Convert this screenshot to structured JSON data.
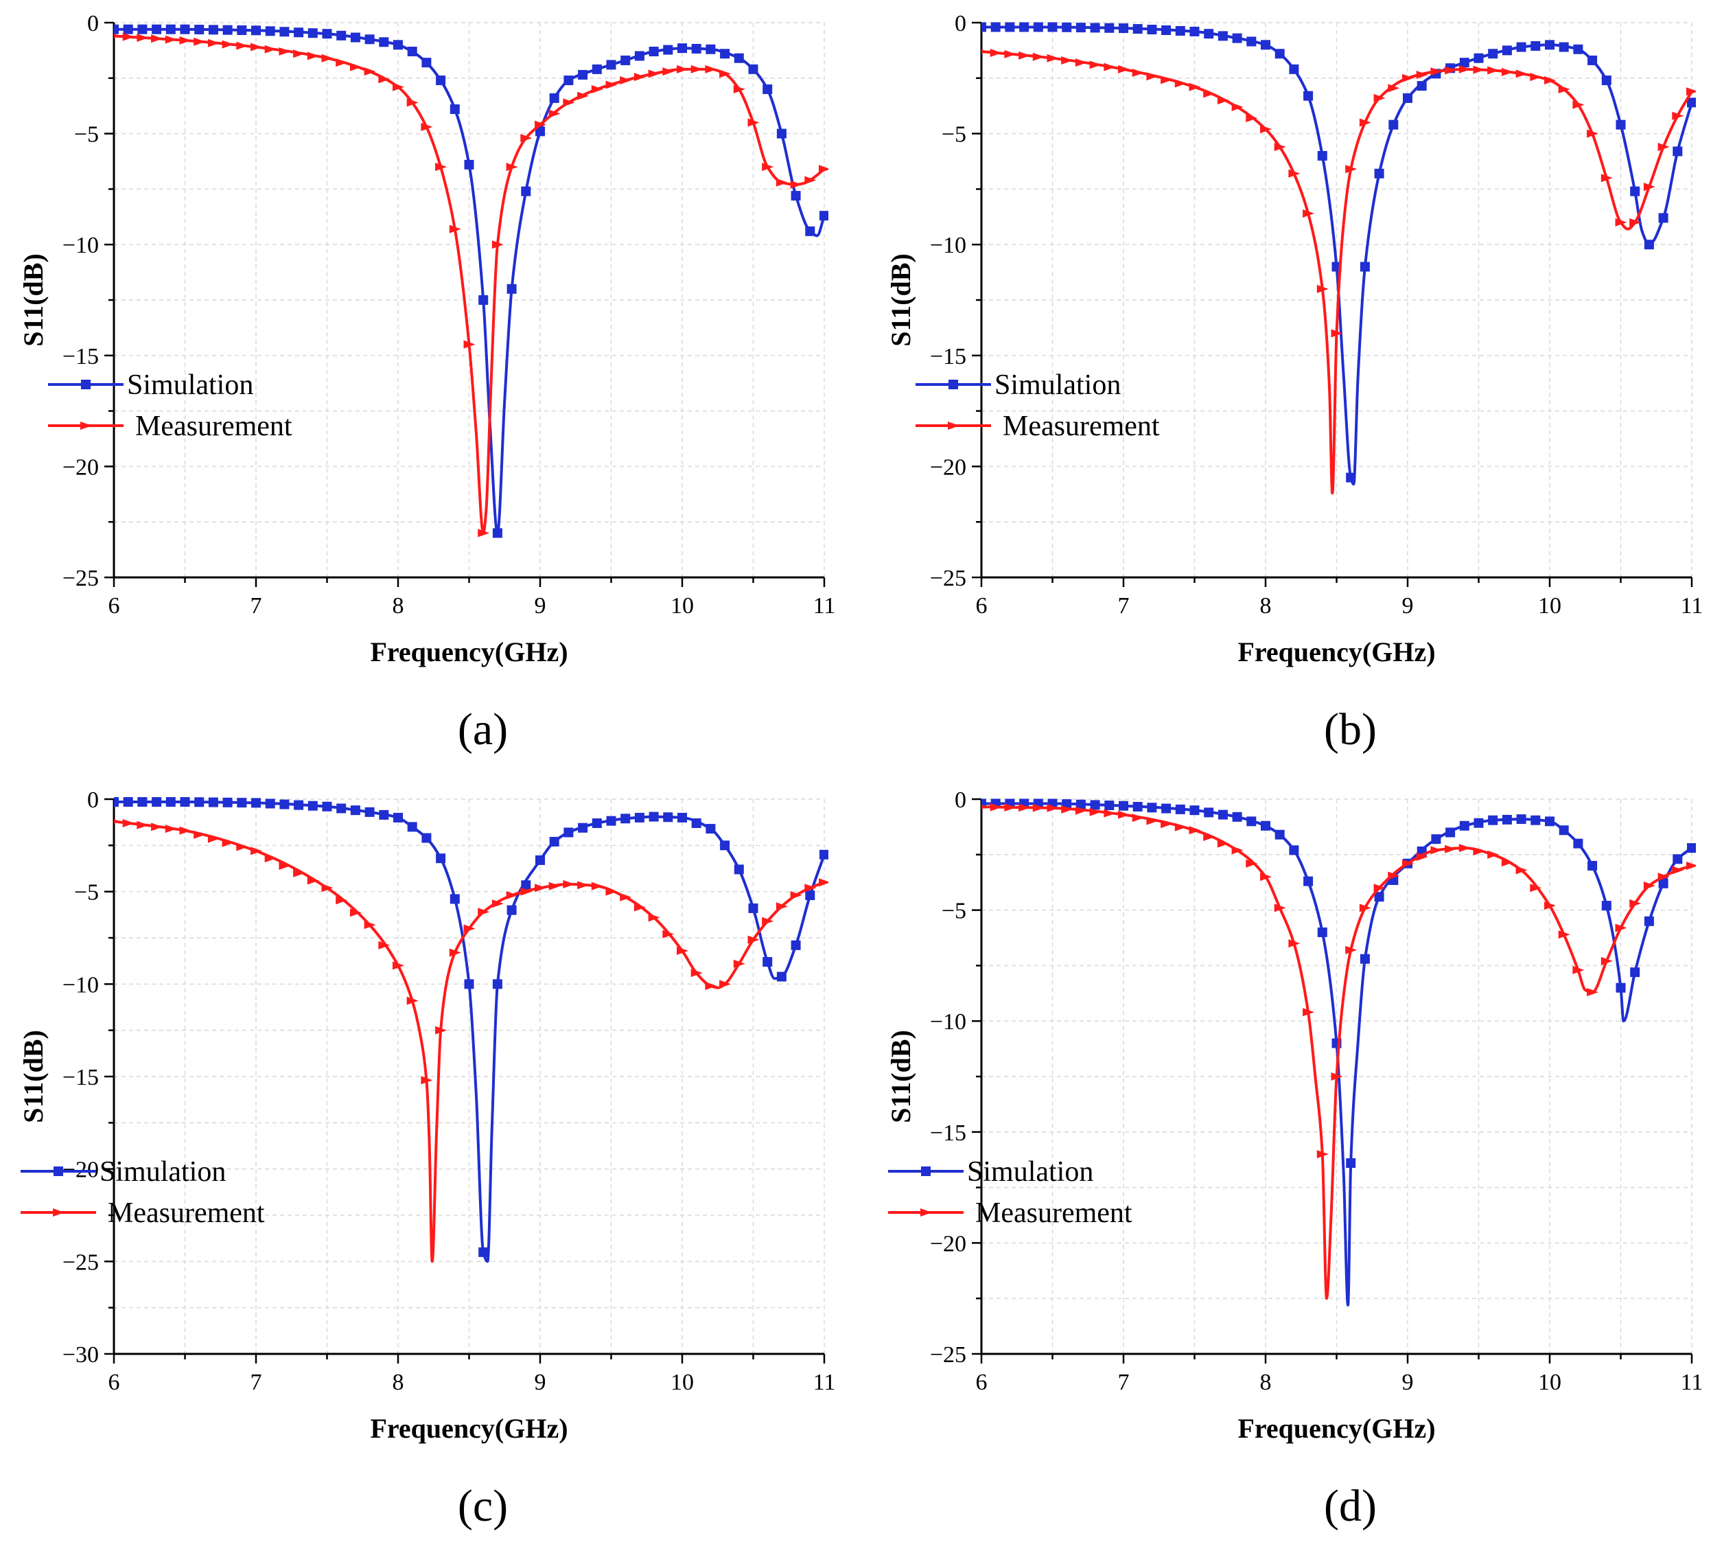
{
  "colors": {
    "simulation": "#1f2fd1",
    "measurement": "#ff1a1a",
    "grid": "#d9d9d9",
    "axis": "#000000"
  },
  "chart_data": [
    {
      "type": "line",
      "caption": "(a)",
      "xlabel": "Frequency(GHz)",
      "ylabel": "S11(dB)",
      "xlim": [
        6,
        11
      ],
      "ylim": [
        -25,
        0
      ],
      "xticks": [
        6,
        7,
        8,
        9,
        10,
        11
      ],
      "yticks": [
        0,
        -5,
        -10,
        -15,
        -20,
        -25
      ],
      "grid": true,
      "legend_position": "center-left",
      "series": [
        {
          "name": "Simulation",
          "color": "#1f2fd1",
          "marker": "square",
          "x": [
            6.0,
            6.5,
            7.0,
            7.5,
            7.8,
            8.0,
            8.1,
            8.2,
            8.3,
            8.4,
            8.5,
            8.6,
            8.65,
            8.7,
            8.75,
            8.8,
            8.9,
            9.0,
            9.1,
            9.2,
            9.4,
            9.6,
            9.8,
            10.0,
            10.2,
            10.4,
            10.5,
            10.6,
            10.7,
            10.8,
            10.9,
            10.95,
            11.0
          ],
          "y": [
            -0.3,
            -0.3,
            -0.35,
            -0.5,
            -0.75,
            -1.0,
            -1.3,
            -1.8,
            -2.6,
            -3.9,
            -6.4,
            -12.5,
            -18.5,
            -23.0,
            -17.0,
            -12.0,
            -7.6,
            -4.9,
            -3.4,
            -2.6,
            -2.1,
            -1.7,
            -1.3,
            -1.15,
            -1.2,
            -1.6,
            -2.1,
            -3.0,
            -5.0,
            -7.8,
            -9.4,
            -9.6,
            -8.7
          ]
        },
        {
          "name": "Measurement",
          "color": "#ff1a1a",
          "marker": "triangle",
          "x": [
            6.0,
            6.5,
            7.0,
            7.5,
            7.8,
            8.0,
            8.1,
            8.2,
            8.3,
            8.4,
            8.5,
            8.55,
            8.6,
            8.62,
            8.65,
            8.7,
            8.8,
            8.9,
            9.0,
            9.2,
            9.4,
            9.6,
            9.8,
            10.0,
            10.2,
            10.3,
            10.4,
            10.5,
            10.6,
            10.7,
            10.8,
            10.85,
            10.9,
            11.0
          ],
          "y": [
            -0.6,
            -0.8,
            -1.1,
            -1.6,
            -2.2,
            -2.9,
            -3.6,
            -4.7,
            -6.5,
            -9.3,
            -14.5,
            -18.5,
            -23.0,
            -22.0,
            -17.0,
            -10.0,
            -6.5,
            -5.2,
            -4.6,
            -3.6,
            -3.0,
            -2.6,
            -2.3,
            -2.1,
            -2.1,
            -2.3,
            -3.0,
            -4.5,
            -6.5,
            -7.2,
            -7.3,
            -7.25,
            -7.1,
            -6.6
          ]
        }
      ]
    },
    {
      "type": "line",
      "caption": "(b)",
      "xlabel": "Frequency(GHz)",
      "ylabel": "S11(dB)",
      "xlim": [
        6,
        11
      ],
      "ylim": [
        -25,
        0
      ],
      "xticks": [
        6,
        7,
        8,
        9,
        10,
        11
      ],
      "yticks": [
        0,
        -5,
        -10,
        -15,
        -20,
        -25
      ],
      "grid": true,
      "legend_position": "center-left",
      "series": [
        {
          "name": "Simulation",
          "color": "#1f2fd1",
          "marker": "square",
          "x": [
            6.0,
            6.5,
            7.0,
            7.5,
            7.8,
            8.0,
            8.1,
            8.2,
            8.3,
            8.4,
            8.5,
            8.55,
            8.6,
            8.62,
            8.65,
            8.7,
            8.8,
            8.9,
            9.0,
            9.2,
            9.4,
            9.6,
            9.8,
            10.0,
            10.2,
            10.3,
            10.4,
            10.5,
            10.6,
            10.65,
            10.7,
            10.8,
            10.9,
            11.0
          ],
          "y": [
            -0.2,
            -0.2,
            -0.25,
            -0.4,
            -0.7,
            -1.0,
            -1.4,
            -2.1,
            -3.3,
            -6.0,
            -11.0,
            -16.0,
            -20.5,
            -20.8,
            -16.0,
            -11.0,
            -6.8,
            -4.6,
            -3.4,
            -2.3,
            -1.8,
            -1.4,
            -1.1,
            -1.0,
            -1.2,
            -1.7,
            -2.6,
            -4.6,
            -7.6,
            -9.4,
            -10.0,
            -8.8,
            -5.8,
            -3.6
          ]
        },
        {
          "name": "Measurement",
          "color": "#ff1a1a",
          "marker": "triangle",
          "x": [
            6.0,
            6.5,
            7.0,
            7.5,
            7.8,
            8.0,
            8.1,
            8.2,
            8.3,
            8.4,
            8.45,
            8.47,
            8.5,
            8.55,
            8.6,
            8.7,
            8.8,
            9.0,
            9.2,
            9.4,
            9.6,
            9.8,
            10.0,
            10.1,
            10.2,
            10.3,
            10.4,
            10.5,
            10.55,
            10.6,
            10.7,
            10.8,
            10.9,
            11.0
          ],
          "y": [
            -1.3,
            -1.6,
            -2.1,
            -2.9,
            -3.8,
            -4.8,
            -5.6,
            -6.8,
            -8.6,
            -12.0,
            -16.5,
            -21.2,
            -14.0,
            -9.0,
            -6.6,
            -4.5,
            -3.4,
            -2.5,
            -2.2,
            -2.1,
            -2.15,
            -2.3,
            -2.6,
            -3.0,
            -3.7,
            -5.0,
            -7.0,
            -9.0,
            -9.3,
            -9.0,
            -7.4,
            -5.6,
            -4.2,
            -3.1
          ]
        }
      ]
    },
    {
      "type": "line",
      "caption": "(c)",
      "xlabel": "Frequency(GHz)",
      "ylabel": "S11(dB)",
      "xlim": [
        6,
        11
      ],
      "ylim": [
        -30,
        0
      ],
      "xticks": [
        6,
        7,
        8,
        9,
        10,
        11
      ],
      "yticks": [
        0,
        -5,
        -10,
        -15,
        -20,
        -25,
        -30
      ],
      "grid": true,
      "legend_position": "bottom-left",
      "series": [
        {
          "name": "Simulation",
          "color": "#1f2fd1",
          "marker": "square",
          "x": [
            6.0,
            6.5,
            7.0,
            7.5,
            7.8,
            8.0,
            8.1,
            8.2,
            8.3,
            8.4,
            8.5,
            8.55,
            8.6,
            8.63,
            8.66,
            8.7,
            8.8,
            9.0,
            9.1,
            9.2,
            9.4,
            9.6,
            9.8,
            10.0,
            10.2,
            10.3,
            10.4,
            10.5,
            10.6,
            10.65,
            10.7,
            10.8,
            10.9,
            11.0
          ],
          "y": [
            -0.15,
            -0.15,
            -0.2,
            -0.4,
            -0.7,
            -1.0,
            -1.5,
            -2.1,
            -3.2,
            -5.4,
            -10.0,
            -16.0,
            -24.5,
            -25.0,
            -18.0,
            -10.0,
            -6.0,
            -3.3,
            -2.3,
            -1.8,
            -1.3,
            -1.05,
            -0.95,
            -1.0,
            -1.6,
            -2.5,
            -3.8,
            -5.9,
            -8.8,
            -9.7,
            -9.6,
            -7.9,
            -5.2,
            -3.0
          ]
        },
        {
          "name": "Measurement",
          "color": "#ff1a1a",
          "marker": "triangle",
          "x": [
            6.0,
            6.5,
            7.0,
            7.5,
            7.8,
            8.0,
            8.1,
            8.15,
            8.2,
            8.22,
            8.24,
            8.27,
            8.3,
            8.35,
            8.4,
            8.5,
            8.6,
            8.8,
            9.0,
            9.2,
            9.4,
            9.6,
            9.8,
            10.0,
            10.1,
            10.2,
            10.25,
            10.3,
            10.4,
            10.5,
            10.6,
            10.7,
            10.8,
            10.9,
            11.0
          ],
          "y": [
            -1.2,
            -1.7,
            -2.8,
            -4.8,
            -6.8,
            -9.0,
            -10.9,
            -12.5,
            -15.2,
            -18.5,
            -25.0,
            -18.2,
            -12.5,
            -9.6,
            -8.3,
            -7.0,
            -6.1,
            -5.2,
            -4.8,
            -4.6,
            -4.7,
            -5.3,
            -6.4,
            -8.2,
            -9.4,
            -10.1,
            -10.2,
            -10.0,
            -8.9,
            -7.6,
            -6.6,
            -5.8,
            -5.2,
            -4.8,
            -4.5
          ]
        }
      ]
    },
    {
      "type": "line",
      "caption": "(d)",
      "xlabel": "Frequency(GHz)",
      "ylabel": "S11(dB)",
      "xlim": [
        6,
        11
      ],
      "ylim": [
        -25,
        0
      ],
      "xticks": [
        6,
        7,
        8,
        9,
        10,
        11
      ],
      "yticks": [
        0,
        -5,
        -10,
        -15,
        -20,
        -25
      ],
      "grid": true,
      "legend_position": "bottom-left",
      "series": [
        {
          "name": "Simulation",
          "color": "#1f2fd1",
          "marker": "square",
          "x": [
            6.0,
            6.5,
            7.0,
            7.5,
            7.8,
            8.0,
            8.1,
            8.2,
            8.3,
            8.4,
            8.5,
            8.55,
            8.58,
            8.6,
            8.65,
            8.7,
            8.8,
            9.0,
            9.2,
            9.4,
            9.6,
            9.8,
            10.0,
            10.1,
            10.2,
            10.3,
            10.4,
            10.5,
            10.52,
            10.6,
            10.7,
            10.8,
            10.9,
            11.0
          ],
          "y": [
            -0.2,
            -0.2,
            -0.3,
            -0.5,
            -0.8,
            -1.2,
            -1.6,
            -2.3,
            -3.7,
            -6.0,
            -11.0,
            -17.0,
            -22.8,
            -16.4,
            -11.0,
            -7.2,
            -4.4,
            -2.9,
            -1.8,
            -1.2,
            -0.95,
            -0.9,
            -1.0,
            -1.4,
            -2.0,
            -3.0,
            -4.8,
            -8.5,
            -10.0,
            -7.8,
            -5.5,
            -3.8,
            -2.7,
            -2.2
          ]
        },
        {
          "name": "Measurement",
          "color": "#ff1a1a",
          "marker": "triangle",
          "x": [
            6.0,
            6.5,
            7.0,
            7.5,
            7.8,
            8.0,
            8.1,
            8.2,
            8.3,
            8.35,
            8.4,
            8.43,
            8.46,
            8.5,
            8.55,
            8.6,
            8.7,
            8.8,
            9.0,
            9.2,
            9.4,
            9.6,
            9.8,
            10.0,
            10.1,
            10.2,
            10.25,
            10.3,
            10.4,
            10.5,
            10.6,
            10.7,
            10.8,
            10.9,
            11.0
          ],
          "y": [
            -0.35,
            -0.4,
            -0.7,
            -1.4,
            -2.3,
            -3.5,
            -4.9,
            -6.5,
            -9.6,
            -12.5,
            -16.0,
            -22.5,
            -19.0,
            -12.5,
            -8.8,
            -6.8,
            -4.9,
            -4.0,
            -2.9,
            -2.3,
            -2.2,
            -2.5,
            -3.2,
            -4.8,
            -6.1,
            -7.7,
            -8.6,
            -8.7,
            -7.3,
            -5.8,
            -4.7,
            -3.9,
            -3.5,
            -3.2,
            -3.0
          ]
        }
      ]
    }
  ]
}
